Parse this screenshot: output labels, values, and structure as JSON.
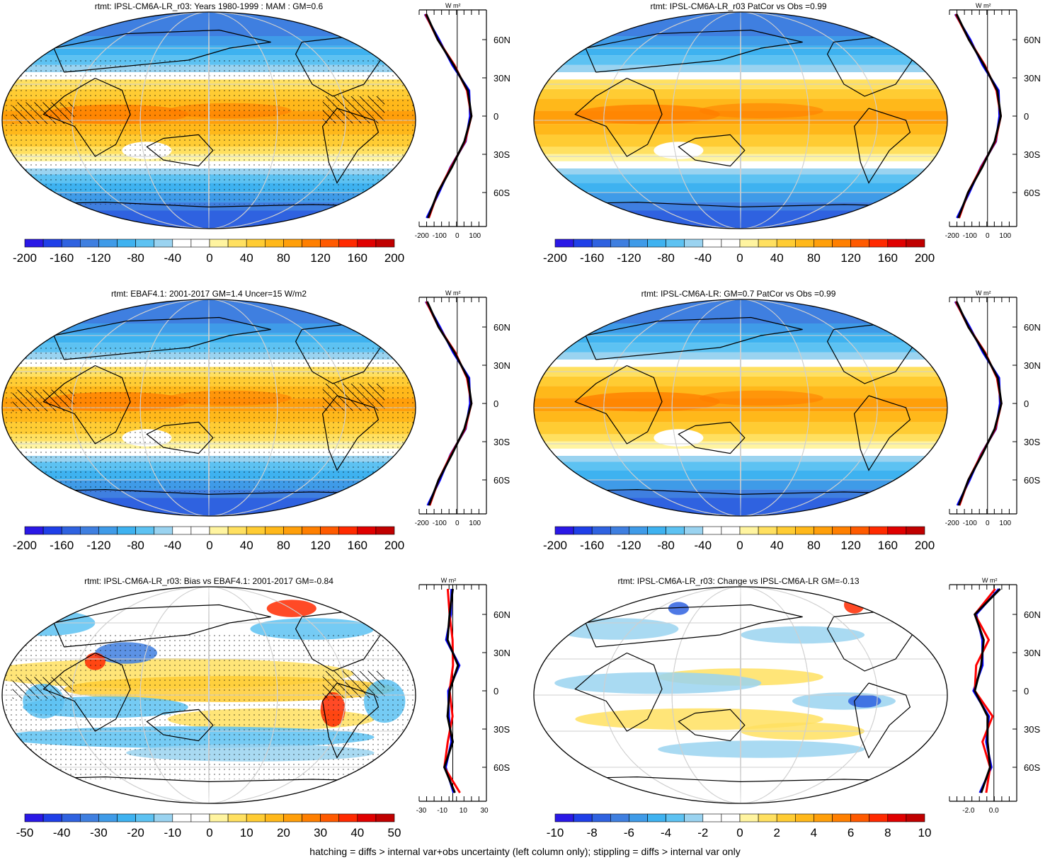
{
  "footer": "hatching = diffs > internal var+obs uncertainty (left column only); stippling = diffs > internal var only",
  "colorbar_colors": [
    "#2a18e6",
    "#1f3fe8",
    "#2f62e0",
    "#3f7fe0",
    "#3f9be8",
    "#3eb2f0",
    "#5dc2f2",
    "#9ad3f0",
    "#ffffff",
    "#ffffff",
    "#fff4a0",
    "#ffe060",
    "#ffcc33",
    "#ffb81a",
    "#ff9f0a",
    "#ff7f00",
    "#ff5a00",
    "#ff2a00",
    "#e00000",
    "#c00000"
  ],
  "panels": [
    {
      "title": "rtmt: IPSL-CM6A-LR_r03: Years 1980-1999 : MAM : GM=0.6",
      "map_type": "climatology",
      "stipple": true,
      "hatch": true,
      "colorbar_ticks": [
        "-200",
        "-160",
        "-120",
        "-80",
        "-40",
        "0",
        "40",
        "80",
        "120",
        "160",
        "200"
      ],
      "profile_unit": "W m²",
      "profile_xticks": [
        "-200",
        "-100",
        "0",
        "100"
      ],
      "profile_yticks": [
        "60N",
        "30N",
        "0",
        "30S",
        "60S"
      ],
      "profile_type": "climatology"
    },
    {
      "title": "rtmt: IPSL-CM6A-LR_r03 PatCor vs Obs =0.99",
      "map_type": "climatology",
      "stipple": false,
      "hatch": false,
      "colorbar_ticks": [
        "-200",
        "-160",
        "-120",
        "-80",
        "-40",
        "0",
        "40",
        "80",
        "120",
        "160",
        "200"
      ],
      "profile_unit": "W m²",
      "profile_xticks": [
        "-200",
        "-100",
        "0",
        "100"
      ],
      "profile_yticks": [
        "60N",
        "30N",
        "0",
        "30S",
        "60S"
      ],
      "profile_type": "climatology"
    },
    {
      "title": "rtmt: EBAF4.1: 2001-2017 GM=1.4 Uncer=15 W/m2",
      "map_type": "climatology",
      "stipple": true,
      "hatch": true,
      "colorbar_ticks": [
        "-200",
        "-160",
        "-120",
        "-80",
        "-40",
        "0",
        "40",
        "80",
        "120",
        "160",
        "200"
      ],
      "profile_unit": "W m²",
      "profile_xticks": [
        "-200",
        "-100",
        "0",
        "100"
      ],
      "profile_yticks": [
        "60N",
        "30N",
        "0",
        "30S",
        "60S"
      ],
      "profile_type": "climatology"
    },
    {
      "title": "rtmt: IPSL-CM6A-LR: GM=0.7 PatCor vs Obs =0.99",
      "map_type": "climatology",
      "stipple": false,
      "hatch": false,
      "colorbar_ticks": [
        "-200",
        "-160",
        "-120",
        "-80",
        "-40",
        "0",
        "40",
        "80",
        "120",
        "160",
        "200"
      ],
      "profile_unit": "W m²",
      "profile_xticks": [
        "-200",
        "-100",
        "0",
        "100"
      ],
      "profile_yticks": [
        "60N",
        "30N",
        "0",
        "30S",
        "60S"
      ],
      "profile_type": "climatology"
    },
    {
      "title": "rtmt: IPSL-CM6A-LR_r03: Bias vs EBAF4.1: 2001-2017 GM=-0.84",
      "map_type": "bias",
      "stipple": true,
      "hatch": true,
      "colorbar_ticks": [
        "-50",
        "-40",
        "-30",
        "-20",
        "-10",
        "0",
        "10",
        "20",
        "30",
        "40",
        "50"
      ],
      "profile_unit": "W m²",
      "profile_xticks": [
        "-30",
        "-10",
        "10",
        "30"
      ],
      "profile_yticks": [
        "60N",
        "30N",
        "0",
        "30S",
        "60S"
      ],
      "profile_type": "bias"
    },
    {
      "title": "rtmt: IPSL-CM6A-LR_r03: Change vs IPSL-CM6A-LR GM=-0.13",
      "map_type": "change",
      "stipple": false,
      "hatch": false,
      "colorbar_ticks": [
        "-10",
        "-8",
        "-6",
        "-4",
        "-2",
        "0",
        "2",
        "4",
        "6",
        "8",
        "10"
      ],
      "profile_unit": "W m²",
      "profile_xticks": [
        "-2.0",
        "0.0"
      ],
      "profile_yticks": [
        "60N",
        "30N",
        "0",
        "30S",
        "60S"
      ],
      "profile_type": "change"
    }
  ],
  "chart_data": [
    {
      "type": "heatmap",
      "title": "rtmt: IPSL-CM6A-LR_r03: Years 1980-1999 : MAM : GM=0.6",
      "colorbar_range": [
        -200,
        200
      ],
      "zonal_mean_profile": {
        "lat": [
          80,
          60,
          40,
          20,
          0,
          -20,
          -40,
          -60,
          -80
        ],
        "values": [
          -175,
          -110,
          -20,
          60,
          80,
          40,
          -30,
          -110,
          -165
        ]
      }
    },
    {
      "type": "heatmap",
      "title": "rtmt: IPSL-CM6A-LR_r03 PatCor vs Obs =0.99",
      "colorbar_range": [
        -200,
        200
      ],
      "zonal_mean_profile": {
        "lat": [
          80,
          60,
          40,
          20,
          0,
          -20,
          -40,
          -60,
          -80
        ],
        "values": [
          -175,
          -105,
          -20,
          55,
          75,
          40,
          -30,
          -110,
          -165
        ]
      }
    },
    {
      "type": "heatmap",
      "title": "rtmt: EBAF4.1: 2001-2017 GM=1.4 Uncer=15 W/m2",
      "colorbar_range": [
        -200,
        200
      ],
      "zonal_mean_profile": {
        "lat": [
          80,
          60,
          40,
          20,
          0,
          -20,
          -40,
          -60,
          -80
        ],
        "values": [
          -170,
          -105,
          -15,
          60,
          80,
          40,
          -30,
          -105,
          -160
        ]
      }
    },
    {
      "type": "heatmap",
      "title": "rtmt: IPSL-CM6A-LR: GM=0.7 PatCor vs Obs =0.99",
      "colorbar_range": [
        -200,
        200
      ],
      "zonal_mean_profile": {
        "lat": [
          80,
          60,
          40,
          20,
          0,
          -20,
          -40,
          -60,
          -80
        ],
        "values": [
          -175,
          -108,
          -18,
          58,
          78,
          40,
          -30,
          -108,
          -163
        ]
      }
    },
    {
      "type": "heatmap",
      "title": "rtmt: IPSL-CM6A-LR_r03: Bias vs EBAF4.1: 2001-2017 GM=-0.84",
      "colorbar_range": [
        -50,
        50
      ],
      "zonal_mean_profile": {
        "lat": [
          80,
          60,
          40,
          20,
          0,
          -20,
          -40,
          -60,
          -80
        ],
        "values": [
          0,
          -3,
          -5,
          5,
          -3,
          -5,
          0,
          -8,
          2
        ]
      }
    },
    {
      "type": "heatmap",
      "title": "rtmt: IPSL-CM6A-LR_r03: Change vs IPSL-CM6A-LR GM=-0.13",
      "colorbar_range": [
        -10,
        10
      ],
      "zonal_mean_profile": {
        "lat": [
          80,
          60,
          40,
          20,
          0,
          -20,
          -40,
          -60,
          -80
        ],
        "values": [
          0.5,
          -1.5,
          -0.8,
          -1.0,
          -1.5,
          -0.5,
          -0.5,
          -0.3,
          -1.0
        ]
      }
    }
  ]
}
